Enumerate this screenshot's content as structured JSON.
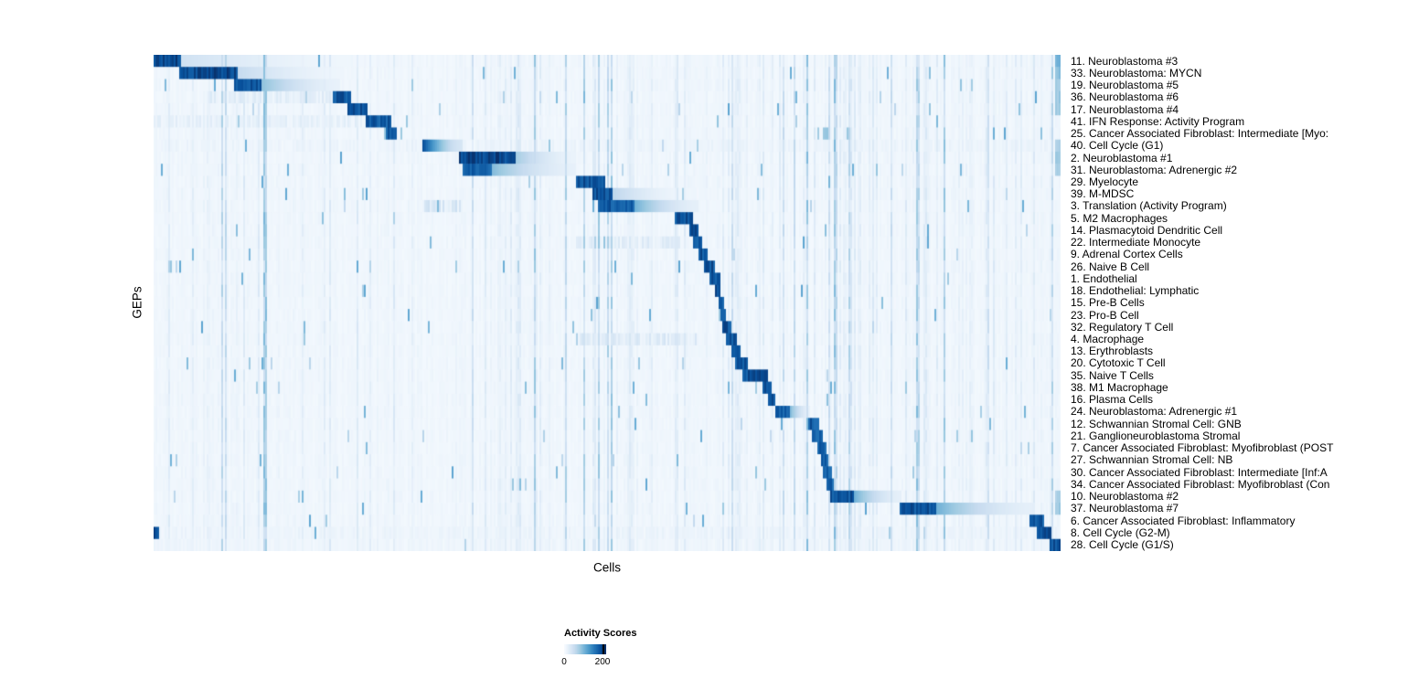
{
  "legend": {
    "title": "Activity Scores",
    "min_label": "0",
    "max_label": "200"
  },
  "chart_data": {
    "type": "heatmap",
    "title": "",
    "xlabel": "Cells",
    "ylabel": "GEPs",
    "colorbar": {
      "title": "Activity Scores",
      "min": 0,
      "max": 200,
      "colormap": "Blues"
    },
    "colormap_stops": [
      [
        247,
        251,
        255
      ],
      [
        222,
        235,
        247
      ],
      [
        198,
        219,
        239
      ],
      [
        158,
        202,
        225
      ],
      [
        107,
        174,
        214
      ],
      [
        66,
        146,
        198
      ],
      [
        33,
        113,
        181
      ],
      [
        8,
        81,
        156
      ],
      [
        8,
        48,
        107
      ]
    ],
    "notes": "Rows are GEPs (gene expression programs), columns are cells ordered so each program's active block lies along the diagonal. segments = [startFrac, endFrac, peakIntensity 0-1, fade(0|1)] spans of elevated activity along the cell axis.",
    "rows": [
      {
        "label": "11. Neuroblastoma #3",
        "segments": [
          [
            0.0,
            0.03,
            1.0,
            0
          ],
          [
            0.03,
            0.23,
            0.2,
            1
          ],
          [
            0.993,
            1.0,
            0.5,
            0
          ]
        ]
      },
      {
        "label": "33. Neuroblastoma: MYCN",
        "segments": [
          [
            0.028,
            0.092,
            1.0,
            0
          ],
          [
            0.092,
            0.21,
            0.25,
            1
          ],
          [
            0.993,
            1.0,
            0.45,
            0
          ]
        ]
      },
      {
        "label": "19. Neuroblastoma #5",
        "segments": [
          [
            0.088,
            0.118,
            0.95,
            0
          ],
          [
            0.118,
            0.205,
            0.42,
            1
          ],
          [
            0.993,
            1.0,
            0.4,
            0
          ]
        ]
      },
      {
        "label": "36. Neuroblastoma #6",
        "segments": [
          [
            0.198,
            0.218,
            0.95,
            0
          ],
          [
            0.06,
            0.2,
            0.1,
            0
          ],
          [
            0.993,
            1.0,
            0.4,
            0
          ]
        ]
      },
      {
        "label": "17. Neuroblastoma #4",
        "segments": [
          [
            0.214,
            0.236,
            0.95,
            0
          ],
          [
            0.993,
            1.0,
            0.4,
            0
          ]
        ]
      },
      {
        "label": "41. IFN Response: Activity Program",
        "segments": [
          [
            0.234,
            0.262,
            0.92,
            0
          ],
          [
            0.0,
            0.23,
            0.08,
            0
          ]
        ]
      },
      {
        "label": "25. Cancer Associated Fibroblast: Intermediate [Myo:",
        "segments": [
          [
            0.257,
            0.268,
            0.92,
            0
          ],
          [
            0.737,
            0.744,
            0.45,
            0
          ]
        ]
      },
      {
        "label": "40. Cell Cycle (G1)",
        "segments": [
          [
            0.296,
            0.34,
            0.92,
            1
          ],
          [
            0.0,
            1.0,
            0.05,
            0
          ],
          [
            0.993,
            1.0,
            0.35,
            0
          ]
        ]
      },
      {
        "label": "2. Neuroblastoma #1",
        "segments": [
          [
            0.336,
            0.4,
            1.0,
            0
          ],
          [
            0.4,
            0.465,
            0.35,
            1
          ],
          [
            0.993,
            1.0,
            0.4,
            0
          ]
        ]
      },
      {
        "label": "31. Neuroblastoma: Adrenergic #2",
        "segments": [
          [
            0.34,
            0.372,
            0.9,
            0
          ],
          [
            0.372,
            0.466,
            0.45,
            1
          ],
          [
            0.993,
            1.0,
            0.35,
            0
          ]
        ]
      },
      {
        "label": "29. Myelocyte",
        "segments": [
          [
            0.466,
            0.497,
            0.95,
            0
          ]
        ]
      },
      {
        "label": "39. M-MDSC",
        "segments": [
          [
            0.484,
            0.507,
            0.95,
            0
          ],
          [
            0.507,
            0.58,
            0.28,
            1
          ]
        ]
      },
      {
        "label": "3. Translation (Activity Program)",
        "segments": [
          [
            0.49,
            0.53,
            0.92,
            0
          ],
          [
            0.53,
            0.6,
            0.5,
            1
          ],
          [
            0.296,
            0.34,
            0.15,
            0
          ]
        ]
      },
      {
        "label": "5. M2 Macrophages",
        "segments": [
          [
            0.574,
            0.594,
            0.95,
            0
          ]
        ]
      },
      {
        "label": "14. Plasmacytoid Dendritic Cell",
        "segments": [
          [
            0.59,
            0.601,
            0.95,
            0
          ]
        ]
      },
      {
        "label": "22. Intermediate Monocyte",
        "segments": [
          [
            0.594,
            0.604,
            0.95,
            0
          ],
          [
            0.466,
            0.58,
            0.1,
            0
          ]
        ]
      },
      {
        "label": "9. Adrenal Cortex Cells",
        "segments": [
          [
            0.6,
            0.611,
            0.95,
            0
          ]
        ]
      },
      {
        "label": "26. Naive B Cell",
        "segments": [
          [
            0.607,
            0.618,
            0.95,
            0
          ]
        ]
      },
      {
        "label": "1. Endothelial",
        "segments": [
          [
            0.613,
            0.624,
            0.95,
            0
          ]
        ]
      },
      {
        "label": "18. Endothelial: Lymphatic",
        "segments": [
          [
            0.619,
            0.626,
            0.95,
            0
          ]
        ]
      },
      {
        "label": "15. Pre-B Cells",
        "segments": [
          [
            0.622,
            0.629,
            0.95,
            0
          ]
        ]
      },
      {
        "label": "23. Pro-B Cell",
        "segments": [
          [
            0.625,
            0.632,
            0.95,
            0
          ]
        ]
      },
      {
        "label": "32. Regulatory T Cell",
        "segments": [
          [
            0.628,
            0.637,
            0.95,
            0
          ]
        ]
      },
      {
        "label": "4. Macrophage",
        "segments": [
          [
            0.632,
            0.643,
            0.95,
            0
          ],
          [
            0.466,
            0.6,
            0.12,
            0
          ]
        ]
      },
      {
        "label": "13. Erythroblasts",
        "segments": [
          [
            0.638,
            0.647,
            0.95,
            0
          ]
        ]
      },
      {
        "label": "20. Cytotoxic T Cell",
        "segments": [
          [
            0.642,
            0.656,
            0.95,
            0
          ]
        ]
      },
      {
        "label": "35. Naive T Cells",
        "segments": [
          [
            0.65,
            0.677,
            0.95,
            0
          ]
        ]
      },
      {
        "label": "38. M1 Macrophage",
        "segments": [
          [
            0.672,
            0.681,
            0.95,
            0
          ]
        ]
      },
      {
        "label": "16. Plasma Cells",
        "segments": [
          [
            0.677,
            0.686,
            0.95,
            0
          ]
        ]
      },
      {
        "label": "24. Neuroblastoma: Adrenergic #1",
        "segments": [
          [
            0.685,
            0.702,
            0.88,
            0
          ],
          [
            0.702,
            0.724,
            0.45,
            1
          ]
        ]
      },
      {
        "label": "12. Schwannian Stromal Cell: GNB",
        "segments": [
          [
            0.722,
            0.734,
            0.92,
            0
          ]
        ]
      },
      {
        "label": "21. Ganglioneuroblastoma Stromal",
        "segments": [
          [
            0.726,
            0.737,
            0.9,
            0
          ]
        ]
      },
      {
        "label": "7. Cancer Associated Fibroblast: Myofibroblast (POST",
        "segments": [
          [
            0.731,
            0.741,
            0.9,
            0
          ]
        ]
      },
      {
        "label": "27. Schwannian Stromal Cell: NB",
        "segments": [
          [
            0.735,
            0.744,
            0.9,
            0
          ]
        ]
      },
      {
        "label": "30. Cancer Associated Fibroblast: Intermediate [Inf:A",
        "segments": [
          [
            0.738,
            0.747,
            0.9,
            0
          ]
        ]
      },
      {
        "label": "34. Cancer Associated Fibroblast: Myofibroblast (Con",
        "segments": [
          [
            0.741,
            0.75,
            0.9,
            0
          ]
        ]
      },
      {
        "label": "10. Neuroblastoma #2",
        "segments": [
          [
            0.745,
            0.772,
            0.95,
            0
          ],
          [
            0.772,
            0.824,
            0.5,
            1
          ],
          [
            0.993,
            1.0,
            0.35,
            0
          ]
        ]
      },
      {
        "label": "37. Neuroblastoma #7",
        "segments": [
          [
            0.823,
            0.862,
            0.95,
            0
          ],
          [
            0.862,
            0.97,
            0.5,
            1
          ],
          [
            0.993,
            1.0,
            0.4,
            0
          ]
        ]
      },
      {
        "label": "6. Cancer Associated Fibroblast: Inflammatory",
        "segments": [
          [
            0.966,
            0.981,
            0.92,
            0
          ]
        ]
      },
      {
        "label": "8. Cell Cycle (G2-M)",
        "segments": [
          [
            0.0,
            0.006,
            0.95,
            0
          ],
          [
            0.974,
            0.989,
            0.95,
            0
          ],
          [
            0.0,
            1.0,
            0.05,
            0
          ]
        ]
      },
      {
        "label": "28. Cell Cycle (G1/S)",
        "segments": [
          [
            0.987,
            1.0,
            0.95,
            0
          ],
          [
            0.0,
            1.0,
            0.04,
            0
          ]
        ]
      }
    ]
  }
}
